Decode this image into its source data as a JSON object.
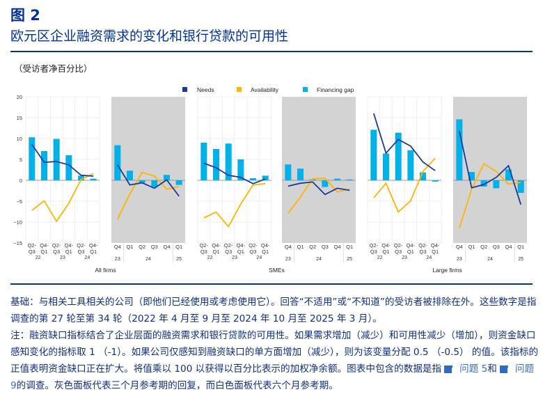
{
  "header": {
    "figure_number": "图 2",
    "title": "欧元区企业融资需求的变化和银行贷款的可用性",
    "unit": "（受访者净百分比）"
  },
  "chart_data": {
    "type": "bar+line",
    "ylim": [
      -15,
      20
    ],
    "yticks": [
      "20",
      "15",
      "10",
      "5",
      "0",
      "−5",
      "−10",
      "−15"
    ],
    "ytick_values": [
      20,
      15,
      10,
      5,
      0,
      -5,
      -10,
      -15
    ],
    "legend": {
      "position": "top-center",
      "entries": [
        "Needs",
        "Availability",
        "Financing gap"
      ]
    },
    "colors": {
      "needs": "#1a3a9b",
      "availability": "#ffb400",
      "gap": "#00b1ea",
      "gray_panel": "#d3d3d3"
    },
    "white_categories": [
      [
        "Q2-",
        "Q3"
      ],
      [
        "Q4-",
        "Q1"
      ],
      [
        "Q2-",
        "Q3"
      ],
      [
        "Q4-",
        "Q1"
      ],
      [
        "Q2-",
        "Q3"
      ],
      [
        "Q4-",
        "Q1"
      ]
    ],
    "white_years": [
      "22",
      "23",
      "24"
    ],
    "gray_categories": [
      "Q4",
      "Q1",
      "Q2",
      "Q3",
      "Q4",
      "Q1"
    ],
    "gray_years": [
      "23",
      "24",
      "25"
    ],
    "groups": [
      {
        "name": "All firms",
        "white": {
          "gap": [
            10.3,
            7.0,
            9.9,
            6.0,
            1.1,
            0.4
          ],
          "needs": [
            8.6,
            4.3,
            4.5,
            3.7,
            1.2,
            1.0
          ],
          "availability": [
            -7.2,
            -4.9,
            -9.8,
            -5.5,
            0.2,
            1.6
          ]
        },
        "gray": {
          "gap": [
            8.4,
            2.3,
            -0.6,
            -1.6,
            1.3,
            -1.1
          ],
          "needs": [
            3.7,
            -1.1,
            -0.6,
            -1.9,
            0.1,
            -3.8
          ],
          "availability": [
            -9.3,
            -3.3,
            1.9,
            1.0,
            -2.1,
            -1.5
          ]
        }
      },
      {
        "name": "SMEs",
        "white": {
          "gap": [
            9.0,
            7.5,
            8.8,
            5.0,
            0.5,
            1.1
          ],
          "needs": [
            4.1,
            3.0,
            1.2,
            0.7,
            -0.8,
            0.3
          ],
          "availability": [
            -9.0,
            -7.6,
            -11.1,
            -5.7,
            -1.1,
            -0.8
          ]
        },
        "gray": {
          "gap": [
            3.8,
            2.8,
            0.2,
            -1.6,
            0.4,
            0.2
          ],
          "needs": [
            -1.4,
            -0.7,
            -0.4,
            -3.4,
            -1.9,
            -2.4
          ],
          "availability": [
            -7.9,
            -4.0,
            0.4,
            0.5,
            -2.8,
            -2.1
          ]
        }
      },
      {
        "name": "Large firms",
        "white": {
          "gap": [
            12.1,
            6.4,
            11.4,
            7.2,
            1.9,
            -0.3
          ],
          "needs": [
            16.0,
            6.5,
            9.8,
            8.2,
            4.4,
            2.3
          ],
          "availability": [
            -4.2,
            -0.7,
            -7.6,
            -4.9,
            2.1,
            5.3
          ]
        },
        "gray": {
          "gap": [
            14.6,
            2.0,
            -1.5,
            -1.9,
            2.6,
            -3.0
          ],
          "needs": [
            11.8,
            -1.8,
            -1.0,
            0.7,
            3.5,
            -5.8
          ],
          "availability": [
            -11.5,
            -2.1,
            4.0,
            2.1,
            -0.9,
            -0.5
          ]
        }
      }
    ]
  },
  "notes": {
    "base": "基础：与相关工具相关的公司（即他们已经使用或考虑使用它）。回答“不适用”或“不知道”的受访者被排除在外。这些数字是指调查的第 27 轮至第 34 轮（2022 年 4 月至 9 月至 2024 年 10 月至 2025 年 3 月）。",
    "note_part1": "注：融资缺口指标结合了企业层面的融资需求和银行贷款的可用性。如果需求增加（减少）和可用性减少（增加），则资金缺口感知变化的指标取 1 （-1）。如果公司仅感知到融资缺口的单方面增加（减少），则为该变量分配 0.5 （-0.5） 的值。该指标的正值表明资金缺口正在扩大。将值乘以 100 以获得以百分比表示的加权净余额。图表中包含的数据是指",
    "link1": "问题 5",
    "and": "和",
    "link2": "问题 9",
    "note_part2": "的调查。灰色面板代表三个月参考期的回复，而白色面板代表六个月参考期。"
  }
}
